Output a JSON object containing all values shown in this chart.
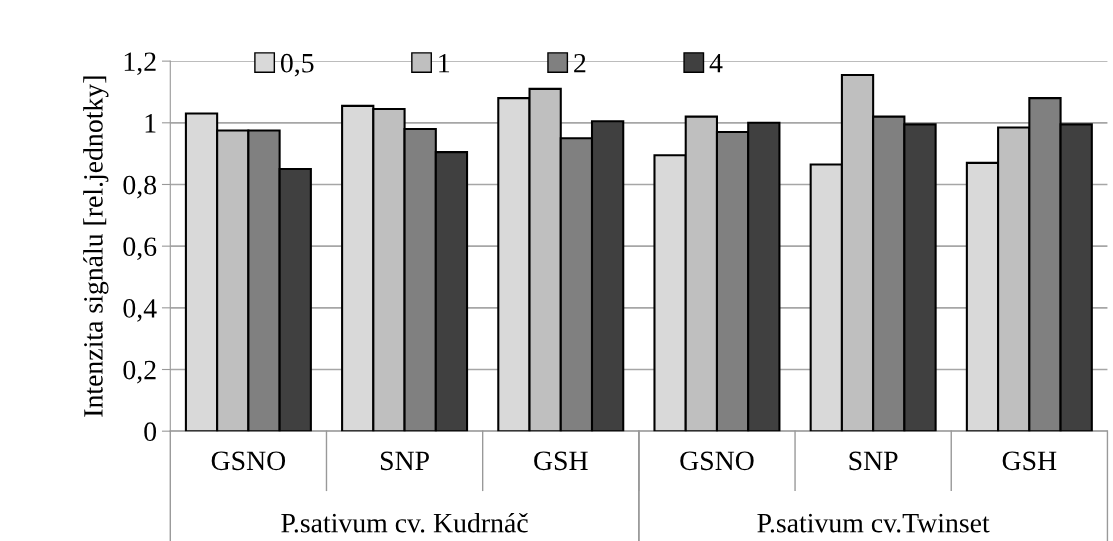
{
  "chart_data": {
    "type": "bar",
    "ylabel": "Intenzita signálu [rel.jednotky]",
    "categories": [
      "GSNO",
      "SNP",
      "GSH",
      "GSNO",
      "SNP",
      "GSH"
    ],
    "series": [
      {
        "name": "0,5",
        "color": "#d9d9d9",
        "values": [
          1.03,
          1.055,
          1.08,
          0.895,
          0.865,
          0.87
        ]
      },
      {
        "name": "1",
        "color": "#bfbfbf",
        "values": [
          0.975,
          1.045,
          1.11,
          1.02,
          1.155,
          0.985
        ]
      },
      {
        "name": "2",
        "color": "#808080",
        "values": [
          0.975,
          0.98,
          0.95,
          0.97,
          1.02,
          1.08
        ]
      },
      {
        "name": "4",
        "color": "#404040",
        "values": [
          0.85,
          0.905,
          1.005,
          1.0,
          0.995,
          0.995
        ]
      }
    ],
    "ylim": [
      0,
      1.2
    ],
    "yticks": [
      0,
      {
        "value": 0.2,
        "label": "0,2"
      },
      {
        "value": 0.4,
        "label": "0,4"
      },
      {
        "value": 0.6,
        "label": "0,6"
      },
      {
        "value": 0.8,
        "label": "0,8"
      },
      1,
      {
        "value": 1.2,
        "label": "1,2"
      }
    ],
    "grid": "y",
    "legend": "top",
    "annotations": [
      "P.sativum cv. Kudrnáč",
      "P.sativum cv.Twinset"
    ]
  }
}
